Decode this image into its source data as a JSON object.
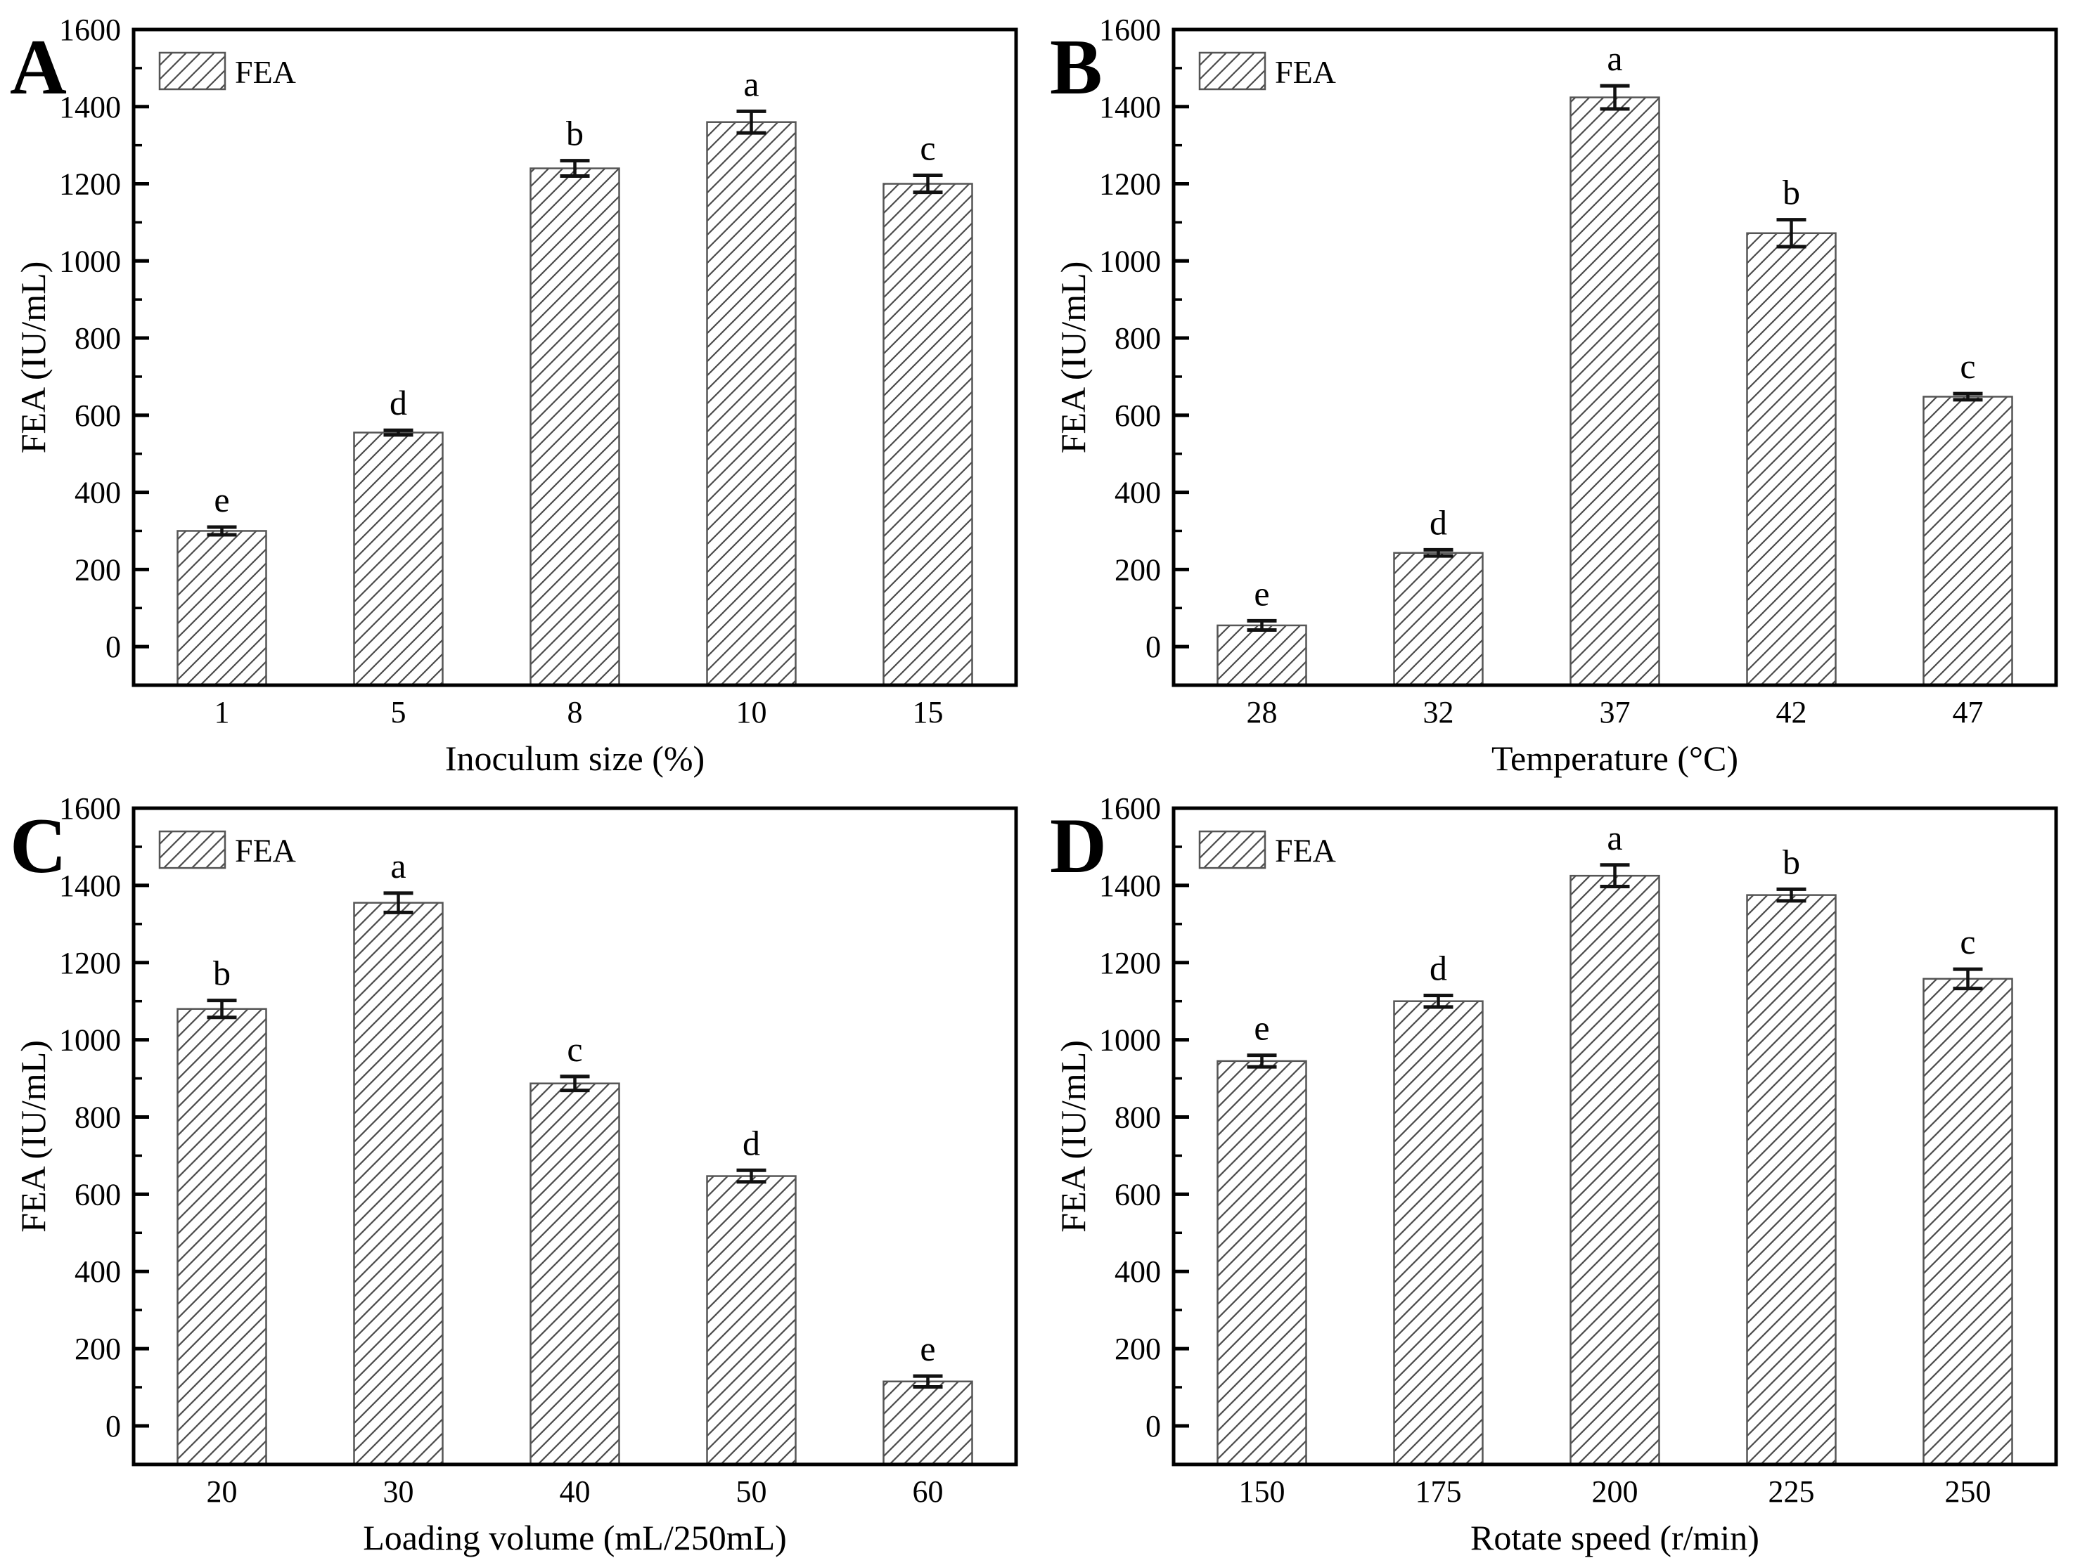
{
  "figure": {
    "background": "#ffffff",
    "legend_label": "FEA",
    "ylabel": "FEA (IU/mL)",
    "panel_labels": [
      "A",
      "B",
      "C",
      "D"
    ],
    "accent_colors": {
      "axis": "#000000",
      "text": "#000000",
      "bar_fill": "#ffffff",
      "bar_outline": "#555555",
      "hatch": "#4a4a4a",
      "error_bar": "#111111"
    }
  },
  "chart_data": [
    {
      "type": "bar",
      "panel_label": "A",
      "title": "",
      "xlabel": "Inoculum size (%)",
      "ylabel": "FEA (IU/mL)",
      "legend": [
        "FEA"
      ],
      "legend_position": "top-left",
      "grid": false,
      "hatch": "diagonal-forward",
      "ylim": [
        -100,
        1600
      ],
      "yticks": [
        0,
        200,
        400,
        600,
        800,
        1000,
        1200,
        1400,
        1600
      ],
      "minor_tick_step": 100,
      "categories": [
        "1",
        "5",
        "8",
        "10",
        "15"
      ],
      "values": [
        300,
        555,
        1240,
        1360,
        1200
      ],
      "errors": [
        10,
        6,
        20,
        28,
        22
      ],
      "sig_letters": [
        "e",
        "d",
        "b",
        "a",
        "c"
      ]
    },
    {
      "type": "bar",
      "panel_label": "B",
      "title": "",
      "xlabel": "Temperature (°C)",
      "ylabel": "FEA (IU/mL)",
      "legend": [
        "FEA"
      ],
      "legend_position": "top-left",
      "grid": false,
      "hatch": "diagonal-forward",
      "ylim": [
        -100,
        1600
      ],
      "yticks": [
        0,
        200,
        400,
        600,
        800,
        1000,
        1200,
        1400,
        1600
      ],
      "minor_tick_step": 100,
      "categories": [
        "28",
        "32",
        "37",
        "42",
        "47"
      ],
      "values": [
        55,
        243,
        1424,
        1072,
        648
      ],
      "errors": [
        12,
        8,
        30,
        35,
        8
      ],
      "sig_letters": [
        "e",
        "d",
        "a",
        "b",
        "c"
      ]
    },
    {
      "type": "bar",
      "panel_label": "C",
      "title": "",
      "xlabel": "Loading volume (mL/250mL)",
      "ylabel": "FEA (IU/mL)",
      "legend": [
        "FEA"
      ],
      "legend_position": "top-left",
      "grid": false,
      "hatch": "diagonal-forward",
      "ylim": [
        -100,
        1600
      ],
      "yticks": [
        0,
        200,
        400,
        600,
        800,
        1000,
        1200,
        1400,
        1600
      ],
      "minor_tick_step": 100,
      "categories": [
        "20",
        "30",
        "40",
        "50",
        "60"
      ],
      "values": [
        1080,
        1355,
        887,
        647,
        115
      ],
      "errors": [
        22,
        25,
        18,
        15,
        14
      ],
      "sig_letters": [
        "b",
        "a",
        "c",
        "d",
        "e"
      ]
    },
    {
      "type": "bar",
      "panel_label": "D",
      "title": "",
      "xlabel": "Rotate speed (r/min)",
      "ylabel": "FEA (IU/mL)",
      "legend": [
        "FEA"
      ],
      "legend_position": "top-left",
      "grid": false,
      "hatch": "diagonal-forward",
      "ylim": [
        -100,
        1600
      ],
      "yticks": [
        0,
        200,
        400,
        600,
        800,
        1000,
        1200,
        1400,
        1600
      ],
      "minor_tick_step": 100,
      "categories": [
        "150",
        "175",
        "200",
        "225",
        "250"
      ],
      "values": [
        945,
        1100,
        1425,
        1375,
        1158
      ],
      "errors": [
        15,
        15,
        28,
        15,
        25
      ],
      "sig_letters": [
        "e",
        "d",
        "a",
        "b",
        "c"
      ]
    }
  ]
}
